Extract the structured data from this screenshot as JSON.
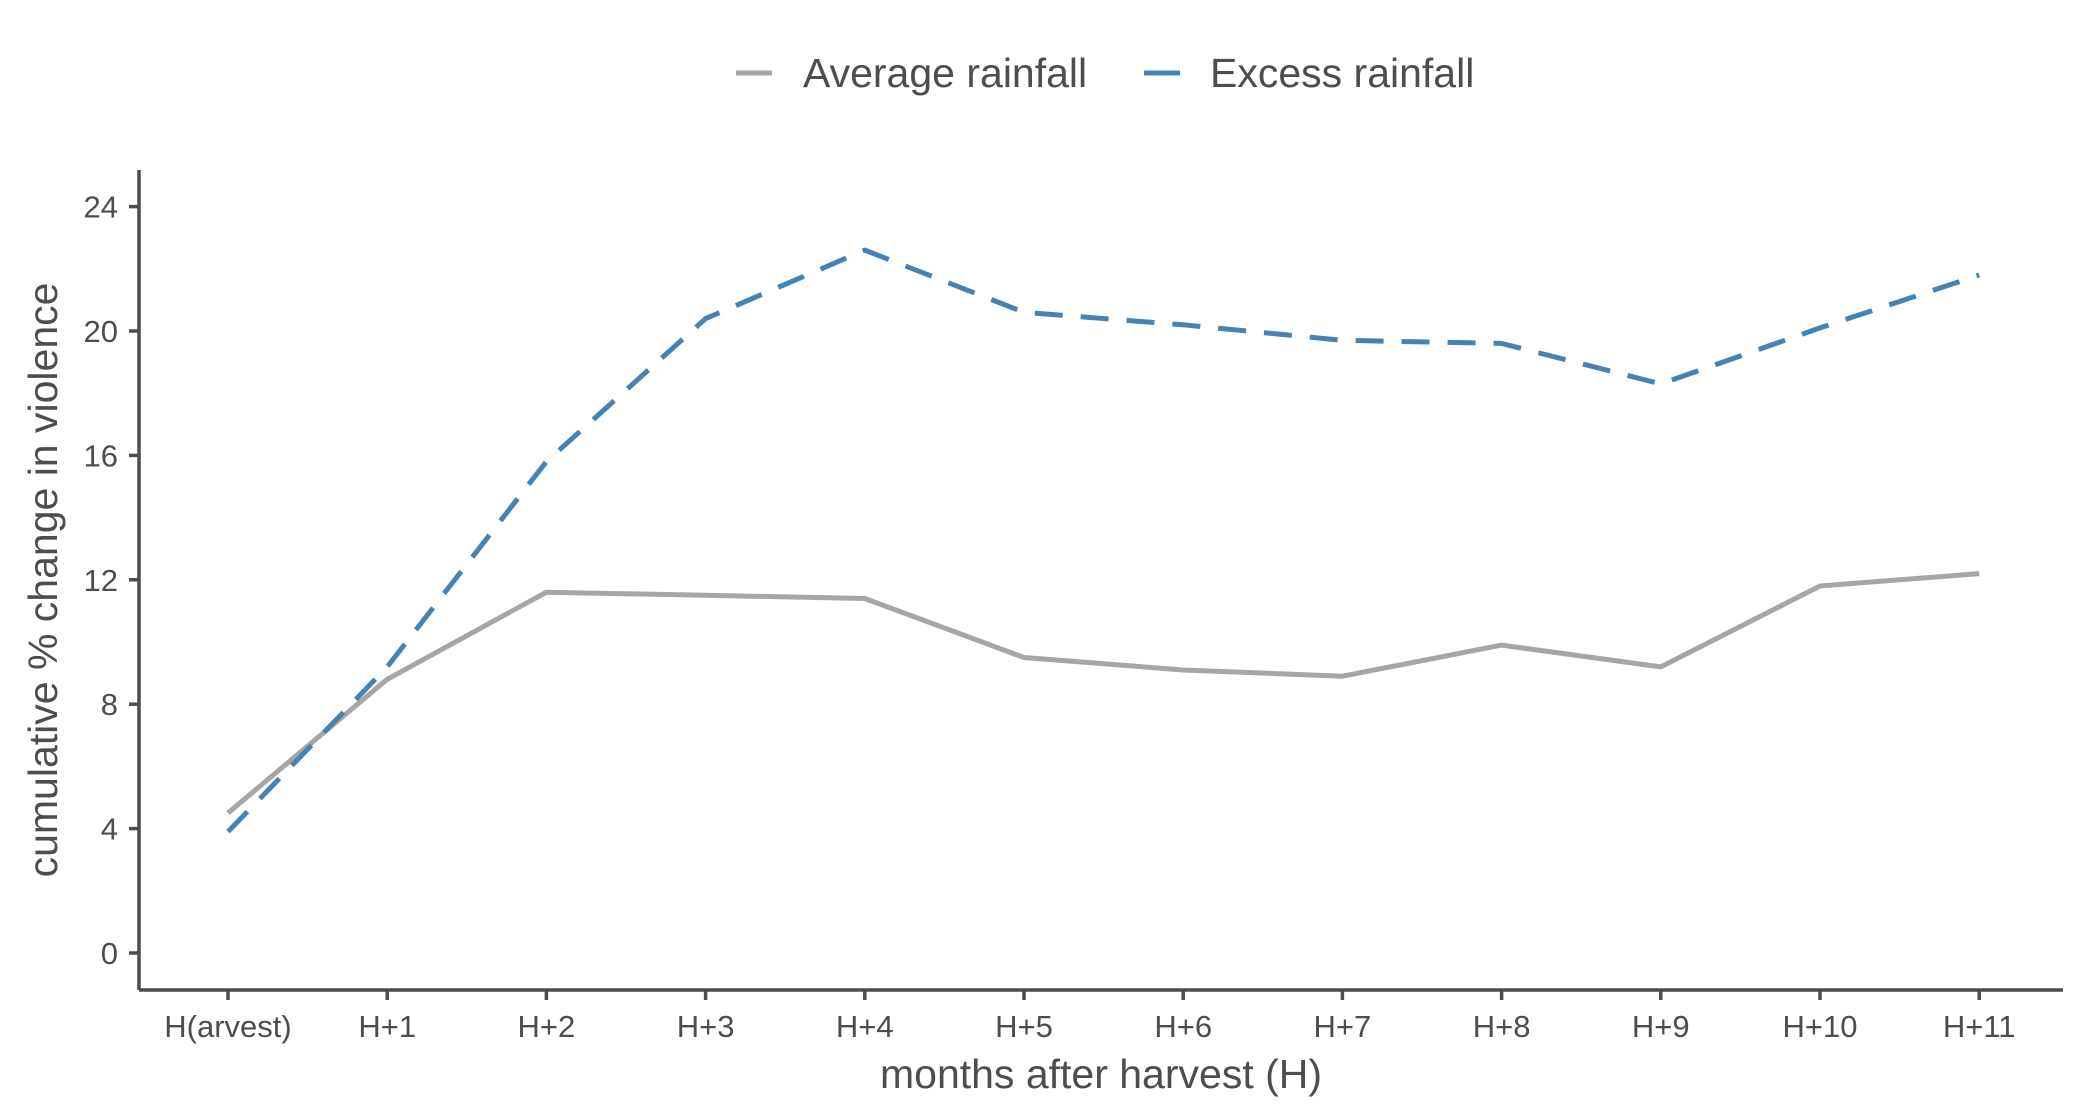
{
  "chart_data": {
    "type": "line",
    "title": "",
    "xlabel": "months after harvest (H)",
    "ylabel": "cumulative % change in violence",
    "categories": [
      "H(arvest)",
      "H+1",
      "H+2",
      "H+3",
      "H+4",
      "H+5",
      "H+6",
      "H+7",
      "H+8",
      "H+9",
      "H+10",
      "H+11"
    ],
    "ylim": [
      -1.2,
      25.2
    ],
    "yticks": [
      0,
      4,
      8,
      12,
      16,
      20,
      24
    ],
    "grid": false,
    "legend_position": "top",
    "series": [
      {
        "name": "Average rainfall",
        "color": "#a6a6a6",
        "dash": "solid",
        "values": [
          4.5,
          8.8,
          11.6,
          11.5,
          11.4,
          9.5,
          9.1,
          8.9,
          9.9,
          9.2,
          11.8,
          12.2
        ]
      },
      {
        "name": "Excess rainfall",
        "color": "#4682b4",
        "dash": "dashed",
        "values": [
          3.9,
          9.2,
          15.8,
          20.4,
          22.6,
          20.6,
          20.2,
          19.7,
          19.6,
          18.3,
          20.1,
          21.8
        ]
      }
    ]
  }
}
